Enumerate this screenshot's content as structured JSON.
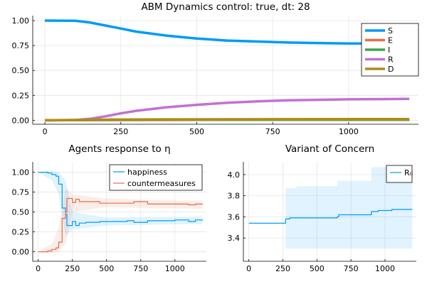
{
  "chart_data": [
    {
      "type": "line",
      "title": "ABM Dynamics control: true, dt: 28",
      "xlim": [
        -40,
        1230
      ],
      "ylim": [
        -0.04,
        1.05
      ],
      "xticks": [
        0,
        250,
        500,
        750,
        1000
      ],
      "xtick_labels": [
        "0",
        "250",
        "500",
        "750",
        "1000"
      ],
      "yticks": [
        0,
        0.25,
        0.5,
        0.75,
        1.0
      ],
      "ytick_labels": [
        "0.00",
        "0.25",
        "0.50",
        "0.75",
        "1.00"
      ],
      "grid": true,
      "legend_position": "right",
      "series": [
        {
          "name": "S",
          "color": "#009af9",
          "points": [
            [
              0,
              1.0
            ],
            [
              100,
              0.998
            ],
            [
              150,
              0.98
            ],
            [
              200,
              0.95
            ],
            [
              250,
              0.92
            ],
            [
              300,
              0.89
            ],
            [
              400,
              0.85
            ],
            [
              500,
              0.82
            ],
            [
              600,
              0.8
            ],
            [
              700,
              0.79
            ],
            [
              800,
              0.78
            ],
            [
              900,
              0.775
            ],
            [
              1000,
              0.77
            ],
            [
              1100,
              0.77
            ],
            [
              1200,
              0.765
            ]
          ]
        },
        {
          "name": "E",
          "color": "#e26f46",
          "points": [
            [
              0,
              0.0
            ],
            [
              200,
              0.002
            ],
            [
              500,
              0.004
            ],
            [
              1200,
              0.004
            ]
          ]
        },
        {
          "name": "I",
          "color": "#3da44d",
          "points": [
            [
              0,
              0.0
            ],
            [
              200,
              0.004
            ],
            [
              500,
              0.006
            ],
            [
              1200,
              0.006
            ]
          ]
        },
        {
          "name": "R",
          "color": "#c271d2",
          "points": [
            [
              0,
              0.0
            ],
            [
              100,
              0.002
            ],
            [
              150,
              0.015
            ],
            [
              200,
              0.04
            ],
            [
              250,
              0.07
            ],
            [
              300,
              0.095
            ],
            [
              400,
              0.13
            ],
            [
              500,
              0.155
            ],
            [
              600,
              0.175
            ],
            [
              700,
              0.19
            ],
            [
              800,
              0.2
            ],
            [
              900,
              0.205
            ],
            [
              1000,
              0.21
            ],
            [
              1100,
              0.212
            ],
            [
              1200,
              0.215
            ]
          ]
        },
        {
          "name": "D",
          "color": "#ac8d18",
          "points": [
            [
              0,
              0.0
            ],
            [
              200,
              0.006
            ],
            [
              400,
              0.009
            ],
            [
              1200,
              0.012
            ]
          ]
        }
      ]
    },
    {
      "type": "line",
      "title": "Agents response to η",
      "xlim": [
        -40,
        1230
      ],
      "ylim": [
        -0.12,
        1.13
      ],
      "xticks": [
        0,
        250,
        500,
        750,
        1000
      ],
      "xtick_labels": [
        "0",
        "250",
        "500",
        "750",
        "1000"
      ],
      "yticks": [
        0,
        0.25,
        0.5,
        0.75,
        1.0
      ],
      "ytick_labels": [
        "0.00",
        "0.25",
        "0.50",
        "0.75",
        "1.00"
      ],
      "grid": true,
      "legend_position": "top-right",
      "series": [
        {
          "name": "happiness",
          "color": "#009af9",
          "steps": [
            [
              0,
              1.0
            ],
            [
              70,
              0.99
            ],
            [
              100,
              0.97
            ],
            [
              130,
              0.95
            ],
            [
              150,
              0.85
            ],
            [
              175,
              0.55
            ],
            [
              200,
              0.47
            ],
            [
              210,
              0.33
            ],
            [
              250,
              0.38
            ],
            [
              275,
              0.33
            ],
            [
              300,
              0.36
            ],
            [
              350,
              0.37
            ],
            [
              450,
              0.38
            ],
            [
              550,
              0.38
            ],
            [
              650,
              0.39
            ],
            [
              700,
              0.37
            ],
            [
              800,
              0.39
            ],
            [
              900,
              0.39
            ],
            [
              1000,
              0.4
            ],
            [
              1100,
              0.38
            ],
            [
              1150,
              0.4
            ],
            [
              1200,
              0.39
            ]
          ]
        },
        {
          "name": "countermeasures",
          "color": "#e26f46",
          "steps": [
            [
              0,
              0.0
            ],
            [
              70,
              0.01
            ],
            [
              100,
              0.03
            ],
            [
              130,
              0.05
            ],
            [
              150,
              0.12
            ],
            [
              175,
              0.42
            ],
            [
              200,
              0.5
            ],
            [
              210,
              0.67
            ],
            [
              250,
              0.62
            ],
            [
              275,
              0.66
            ],
            [
              300,
              0.63
            ],
            [
              350,
              0.63
            ],
            [
              450,
              0.61
            ],
            [
              550,
              0.61
            ],
            [
              650,
              0.61
            ],
            [
              700,
              0.63
            ],
            [
              800,
              0.6
            ],
            [
              900,
              0.6
            ],
            [
              1000,
              0.6
            ],
            [
              1100,
              0.59
            ],
            [
              1150,
              0.6
            ],
            [
              1200,
              0.59
            ]
          ]
        }
      ],
      "bands": [
        {
          "color": "#009af9",
          "points": [
            [
              0,
              1.0,
              1.0
            ],
            [
              100,
              0.9,
              1.02
            ],
            [
              150,
              0.72,
              1.0
            ],
            [
              200,
              0.2,
              0.9
            ],
            [
              250,
              0.28,
              0.5
            ],
            [
              500,
              0.33,
              0.43
            ],
            [
              800,
              0.34,
              0.44
            ],
            [
              1200,
              0.35,
              0.44
            ]
          ]
        },
        {
          "color": "#e26f46",
          "points": [
            [
              0,
              0.0,
              0.0
            ],
            [
              100,
              -0.02,
              0.1
            ],
            [
              150,
              0.0,
              0.3
            ],
            [
              200,
              0.1,
              0.8
            ],
            [
              250,
              0.5,
              0.72
            ],
            [
              500,
              0.56,
              0.67
            ],
            [
              800,
              0.55,
              0.65
            ],
            [
              1200,
              0.54,
              0.64
            ]
          ]
        }
      ]
    },
    {
      "type": "line",
      "title": "Variant of Concern",
      "xlim": [
        -40,
        1230
      ],
      "ylim": [
        3.18,
        4.12
      ],
      "xticks": [
        0,
        250,
        500,
        750,
        1000
      ],
      "xtick_labels": [
        "0",
        "250",
        "500",
        "750",
        "1000"
      ],
      "yticks": [
        3.4,
        3.6,
        3.8,
        4.0
      ],
      "ytick_labels": [
        "3.4",
        "3.6",
        "3.8",
        "4.0"
      ],
      "grid": true,
      "legend_position": "top-right",
      "series": [
        {
          "name": "R₀",
          "color": "#009af9",
          "steps": [
            [
              0,
              3.54
            ],
            [
              270,
              3.58
            ],
            [
              300,
              3.59
            ],
            [
              650,
              3.6
            ],
            [
              660,
              3.62
            ],
            [
              900,
              3.65
            ],
            [
              950,
              3.66
            ],
            [
              1050,
              3.67
            ],
            [
              1200,
              3.67
            ]
          ]
        }
      ],
      "bands": [
        {
          "color": "#009af9",
          "steps": [
            [
              0,
              3.54,
              3.54
            ],
            [
              270,
              3.3,
              3.87
            ],
            [
              350,
              3.3,
              3.89
            ],
            [
              650,
              3.3,
              3.94
            ],
            [
              900,
              3.3,
              4.07
            ],
            [
              1100,
              3.3,
              4.05
            ],
            [
              1200,
              3.3,
              4.05
            ]
          ]
        }
      ]
    }
  ]
}
